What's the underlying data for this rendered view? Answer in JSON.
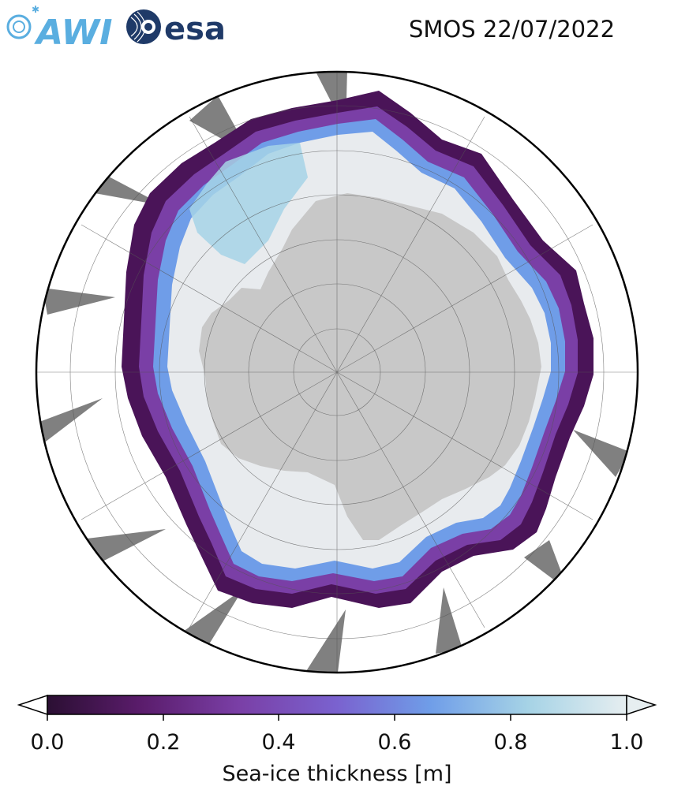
{
  "header": {
    "title": "SMOS 22/07/2022",
    "logos": [
      {
        "name": "AWI",
        "text": "AWI",
        "color": "#5aaee0"
      },
      {
        "name": "esa",
        "text": "esa",
        "color": "#1f3a68"
      }
    ]
  },
  "map": {
    "projection": "south-polar-stereographic",
    "variable": "sea-ice thickness",
    "land_color": "#c8c8c8",
    "no_data_color": "#808080",
    "thick_ice_color": "#e8ebee",
    "grid": true
  },
  "colorbar": {
    "label": "Sea-ice thickness [m]",
    "ticks": [
      "0.0",
      "0.2",
      "0.4",
      "0.6",
      "0.8",
      "1.0"
    ],
    "range": [
      0.0,
      1.0
    ],
    "extend": "both",
    "colors": [
      "#2b0f33",
      "#5a1c6b",
      "#7a3fa6",
      "#7a62cf",
      "#6f9de8",
      "#a6d3e6",
      "#e6eef0"
    ]
  }
}
